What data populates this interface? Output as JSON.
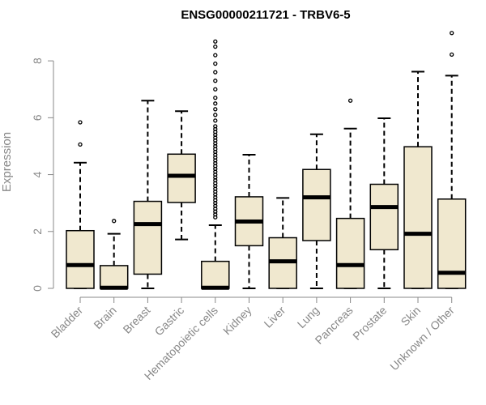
{
  "chart_data": {
    "type": "box",
    "title": "ENSG00000211721 - TRBV6-5",
    "xlabel": "",
    "ylabel": "Expression",
    "ylim": [
      0,
      9.2
    ],
    "yticks": [
      0,
      2,
      4,
      6,
      8
    ],
    "box_fill_color": "#f0e8cf",
    "categories": [
      "Bladder",
      "Brain",
      "Breast",
      "Gastric",
      "Hematopoietic cells",
      "Kidney",
      "Liver",
      "Lung",
      "Pancreas",
      "Prostate",
      "Skin",
      "Unknown / Other"
    ],
    "boxes": [
      {
        "category": "Bladder",
        "whisker_low": 0,
        "q1": 0,
        "median": 0.82,
        "q3": 2.03,
        "whisker_high": 4.42,
        "outliers": [
          5.06,
          5.84
        ]
      },
      {
        "category": "Brain",
        "whisker_low": 0,
        "q1": 0,
        "median": 0.02,
        "q3": 0.8,
        "whisker_high": 1.92,
        "outliers": [
          2.37
        ]
      },
      {
        "category": "Breast",
        "whisker_low": 0,
        "q1": 0.5,
        "median": 2.26,
        "q3": 3.06,
        "whisker_high": 6.6,
        "outliers": []
      },
      {
        "category": "Gastric",
        "whisker_low": 1.72,
        "q1": 3.02,
        "median": 3.96,
        "q3": 4.72,
        "whisker_high": 6.23,
        "outliers": []
      },
      {
        "category": "Hematopoietic cells",
        "whisker_low": 0,
        "q1": 0,
        "median": 0.02,
        "q3": 0.95,
        "whisker_high": 2.22,
        "outliers": [
          2.5,
          2.6,
          2.7,
          2.8,
          2.9,
          3.0,
          3.1,
          3.2,
          3.3,
          3.4,
          3.5,
          3.6,
          3.7,
          3.8,
          3.9,
          4.0,
          4.1,
          4.2,
          4.3,
          4.4,
          4.5,
          4.6,
          4.7,
          4.8,
          4.9,
          5.0,
          5.1,
          5.2,
          5.3,
          5.4,
          5.5,
          5.6,
          5.7,
          5.9,
          6.1,
          6.3,
          6.5,
          6.7,
          7.0,
          7.3,
          7.6,
          7.9,
          8.2,
          8.5,
          8.68
        ]
      },
      {
        "category": "Kidney",
        "whisker_low": 0,
        "q1": 1.5,
        "median": 2.35,
        "q3": 3.22,
        "whisker_high": 4.7,
        "outliers": []
      },
      {
        "category": "Liver",
        "whisker_low": 0,
        "q1": 0,
        "median": 0.95,
        "q3": 1.78,
        "whisker_high": 3.18,
        "outliers": []
      },
      {
        "category": "Lung",
        "whisker_low": 0,
        "q1": 1.68,
        "median": 3.2,
        "q3": 4.18,
        "whisker_high": 5.42,
        "outliers": []
      },
      {
        "category": "Pancreas",
        "whisker_low": 0,
        "q1": 0,
        "median": 0.82,
        "q3": 2.46,
        "whisker_high": 5.62,
        "outliers": [
          6.6
        ]
      },
      {
        "category": "Prostate",
        "whisker_low": 0,
        "q1": 1.36,
        "median": 2.86,
        "q3": 3.66,
        "whisker_high": 5.98,
        "outliers": []
      },
      {
        "category": "Skin",
        "whisker_low": 0,
        "q1": 0,
        "median": 1.92,
        "q3": 4.98,
        "whisker_high": 7.62,
        "outliers": []
      },
      {
        "category": "Unknown / Other",
        "whisker_low": 0,
        "q1": 0,
        "median": 0.55,
        "q3": 3.14,
        "whisker_high": 7.48,
        "outliers": [
          8.22,
          8.98
        ]
      }
    ]
  }
}
